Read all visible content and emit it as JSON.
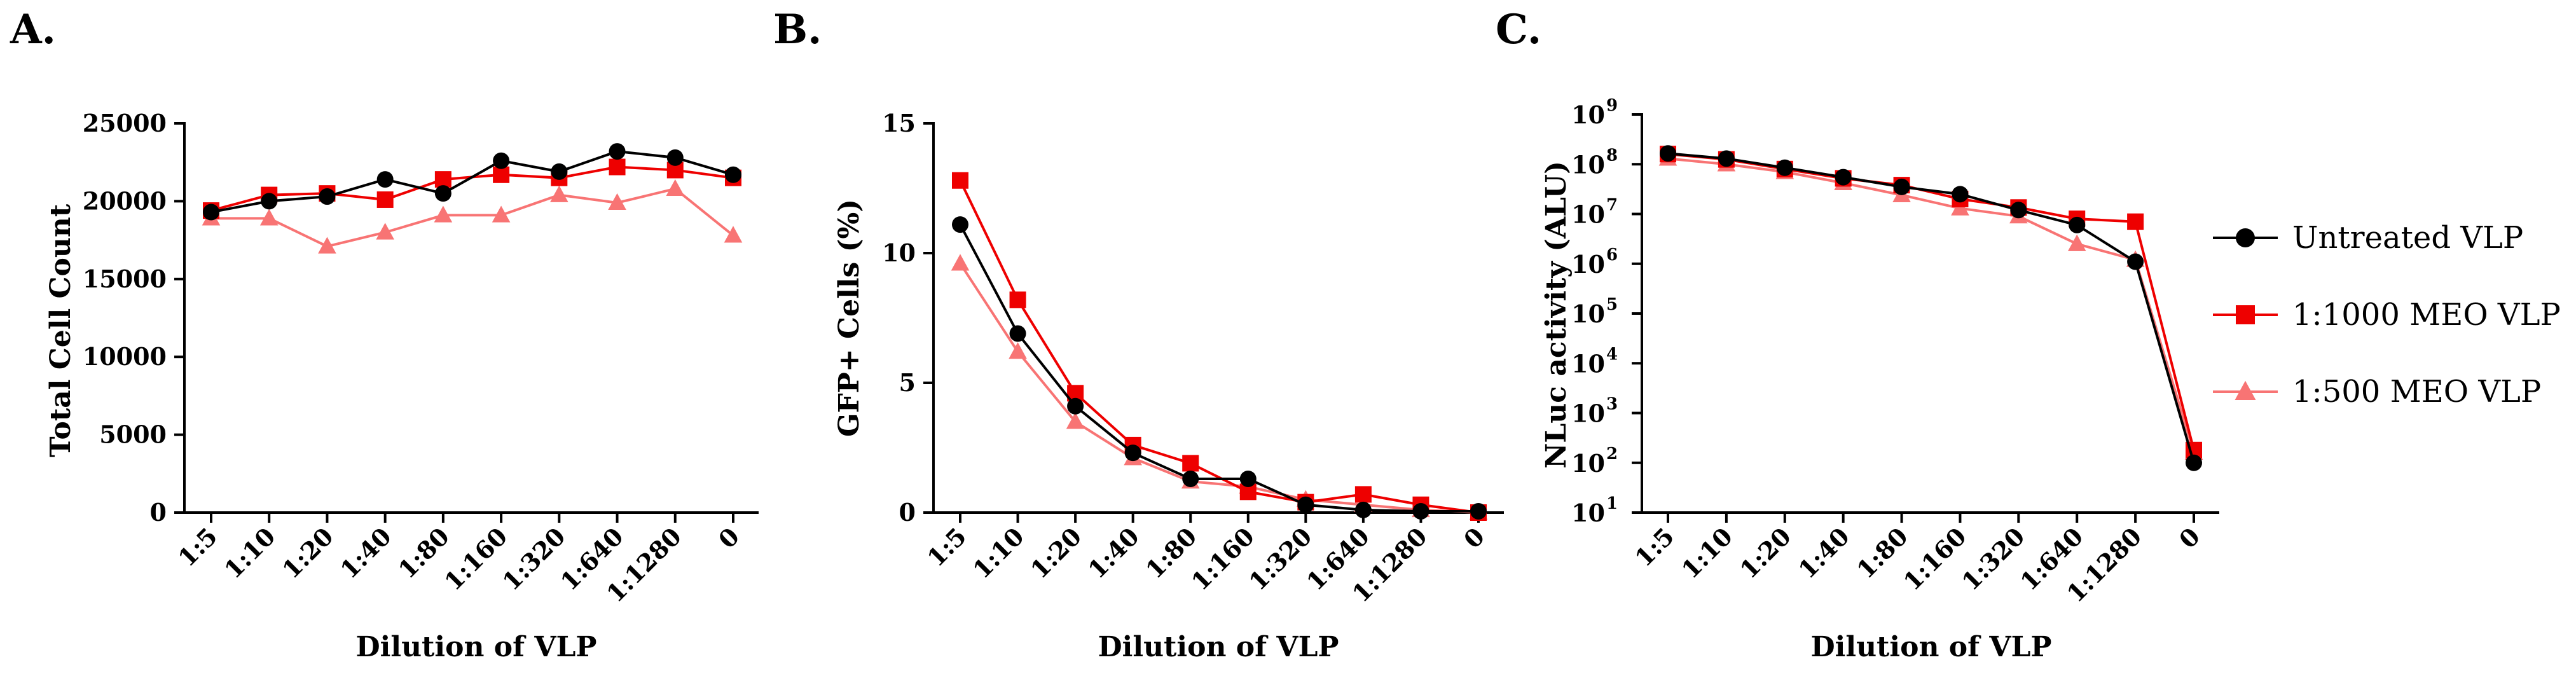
{
  "panel_letters": [
    "A.",
    "B.",
    "C."
  ],
  "chart_data": [
    {
      "type": "line",
      "panel": "A.",
      "xlabel": "Dilution of VLP",
      "ylabel": "Total Cell Count",
      "ylim": [
        0,
        25000
      ],
      "yticks": [
        0,
        5000,
        10000,
        15000,
        20000,
        25000
      ],
      "yscale": "linear",
      "categories": [
        "1:5",
        "1:10",
        "1:20",
        "1:40",
        "1:80",
        "1:160",
        "1:320",
        "1:640",
        "1:1280",
        "0"
      ],
      "series": [
        {
          "name": "Untreated VLP",
          "values": [
            19300,
            20000,
            20300,
            21400,
            20500,
            22600,
            21900,
            23200,
            22800,
            21700
          ]
        },
        {
          "name": "1:1000 MEO VLP",
          "values": [
            19400,
            20400,
            20500,
            20100,
            21400,
            21700,
            21500,
            22200,
            22000,
            21500
          ]
        },
        {
          "name": "1:500 MEO VLP",
          "values": [
            18900,
            18900,
            17100,
            18000,
            19100,
            19100,
            20400,
            19900,
            20800,
            17800
          ]
        }
      ]
    },
    {
      "type": "line",
      "panel": "B.",
      "xlabel": "Dilution of VLP",
      "ylabel": "GFP+ Cells (%)",
      "ylim": [
        0,
        15
      ],
      "yticks": [
        0,
        5,
        10,
        15
      ],
      "yscale": "linear",
      "categories": [
        "1:5",
        "1:10",
        "1:20",
        "1:40",
        "1:80",
        "1:160",
        "1:320",
        "1:640",
        "1:1280",
        "0"
      ],
      "series": [
        {
          "name": "Untreated VLP",
          "values": [
            11.1,
            6.9,
            4.1,
            2.3,
            1.3,
            1.3,
            0.3,
            0.1,
            0.05,
            0.05
          ]
        },
        {
          "name": "1:1000 MEO VLP",
          "values": [
            12.8,
            8.2,
            4.6,
            2.6,
            1.9,
            0.8,
            0.4,
            0.7,
            0.3,
            0.0
          ]
        },
        {
          "name": "1:500 MEO VLP",
          "values": [
            9.6,
            6.2,
            3.5,
            2.1,
            1.2,
            1.0,
            0.5,
            0.3,
            0.1,
            0.0
          ]
        }
      ]
    },
    {
      "type": "line",
      "panel": "C.",
      "xlabel": "Dilution of VLP",
      "ylabel": "NLuc activity (ALU)",
      "yscale": "log",
      "ylim_exp": [
        1,
        9
      ],
      "ytick_base": "10",
      "ytick_exps": [
        "1",
        "2",
        "3",
        "4",
        "5",
        "6",
        "7",
        "8",
        "9"
      ],
      "categories": [
        "1:5",
        "1:10",
        "1:20",
        "1:40",
        "1:80",
        "1:160",
        "1:320",
        "1:640",
        "1:1280",
        "0"
      ],
      "series": [
        {
          "name": "Untreated VLP",
          "values": [
            165000000,
            130000000,
            85000000,
            55000000,
            35000000,
            25000000,
            12000000,
            6000000,
            1100000,
            100
          ]
        },
        {
          "name": "1:1000 MEO VLP",
          "values": [
            160000000,
            125000000,
            80000000,
            52000000,
            38000000,
            20000000,
            13500000,
            8000000,
            7000000,
            180
          ]
        },
        {
          "name": "1:500 MEO VLP",
          "values": [
            130000000,
            100000000,
            70000000,
            42000000,
            24000000,
            13000000,
            9000000,
            2500000,
            1200000,
            160
          ]
        }
      ]
    }
  ],
  "legend": {
    "entries": [
      {
        "name": "Untreated VLP",
        "color": "#000000",
        "marker": "circle"
      },
      {
        "name": "1:1000 MEO VLP",
        "color": "#ee0000",
        "marker": "square"
      },
      {
        "name": "1:500 MEO VLP",
        "color": "#f87474",
        "marker": "triangle"
      }
    ]
  }
}
